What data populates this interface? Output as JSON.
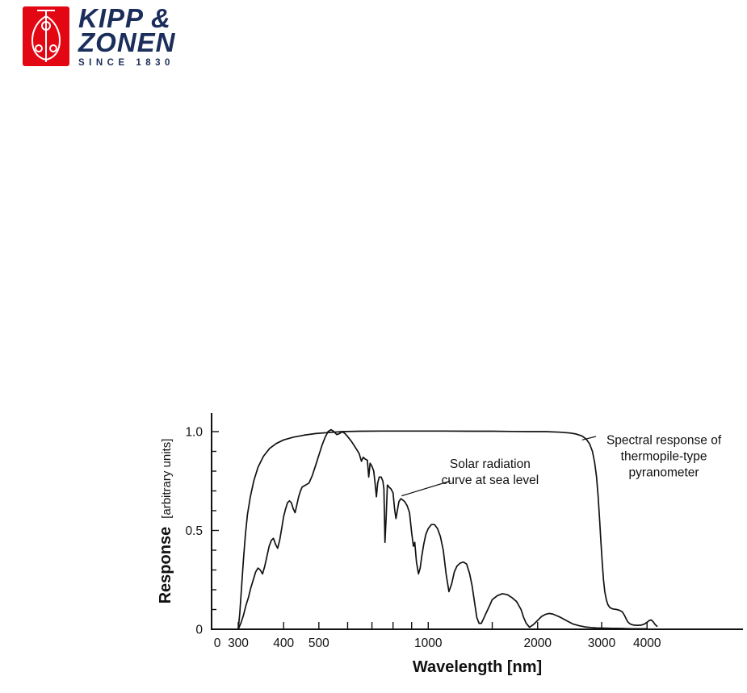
{
  "logo": {
    "brand_line1": "KIPP &",
    "brand_line2": "ZONEN",
    "tagline": "SINCE 1830",
    "colors": {
      "red": "#e30613",
      "navy": "#1b2d5b"
    }
  },
  "chart_data": {
    "type": "line",
    "x_axis": {
      "label": "Wavelength [nm]",
      "scale": "log",
      "ticks_labeled": [
        {
          "value": 0,
          "label": "0"
        },
        {
          "value": 300,
          "label": "300"
        },
        {
          "value": 400,
          "label": "400"
        },
        {
          "value": 500,
          "label": "500"
        },
        {
          "value": 1000,
          "label": "1000"
        },
        {
          "value": 2000,
          "label": "2000"
        },
        {
          "value": 3000,
          "label": "3000"
        },
        {
          "value": 4000,
          "label": "4000"
        }
      ],
      "ticks_minor": [
        600,
        700,
        800,
        900,
        1500
      ]
    },
    "y_axis": {
      "label": "Response",
      "units_label": "[arbitrary units]",
      "scale": "linear",
      "range": [
        0,
        1.08
      ],
      "ticks_labeled": [
        {
          "value": 0,
          "label": "0"
        },
        {
          "value": 0.5,
          "label": "0.5"
        },
        {
          "value": 1.0,
          "label": "1.0"
        }
      ],
      "ticks_minor": [
        0.1,
        0.2,
        0.3,
        0.4,
        0.6,
        0.7,
        0.8,
        0.9
      ]
    },
    "series": [
      {
        "name": "solar-radiation-curve",
        "label": "Solar radiation curve at sea level",
        "points": [
          [
            300,
            0
          ],
          [
            305,
            0.03
          ],
          [
            310,
            0.07
          ],
          [
            315,
            0.12
          ],
          [
            320,
            0.16
          ],
          [
            325,
            0.21
          ],
          [
            330,
            0.25
          ],
          [
            335,
            0.29
          ],
          [
            340,
            0.31
          ],
          [
            345,
            0.3
          ],
          [
            350,
            0.28
          ],
          [
            355,
            0.32
          ],
          [
            360,
            0.37
          ],
          [
            365,
            0.42
          ],
          [
            370,
            0.45
          ],
          [
            375,
            0.46
          ],
          [
            380,
            0.43
          ],
          [
            385,
            0.41
          ],
          [
            390,
            0.45
          ],
          [
            395,
            0.51
          ],
          [
            400,
            0.57
          ],
          [
            405,
            0.61
          ],
          [
            410,
            0.64
          ],
          [
            415,
            0.65
          ],
          [
            420,
            0.64
          ],
          [
            425,
            0.61
          ],
          [
            430,
            0.59
          ],
          [
            435,
            0.63
          ],
          [
            440,
            0.67
          ],
          [
            445,
            0.7
          ],
          [
            450,
            0.72
          ],
          [
            460,
            0.73
          ],
          [
            470,
            0.74
          ],
          [
            480,
            0.78
          ],
          [
            490,
            0.83
          ],
          [
            500,
            0.88
          ],
          [
            510,
            0.93
          ],
          [
            520,
            0.97
          ],
          [
            530,
            1.0
          ],
          [
            540,
            1.01
          ],
          [
            550,
            1.0
          ],
          [
            560,
            0.985
          ],
          [
            570,
            0.99
          ],
          [
            580,
            1.0
          ],
          [
            590,
            0.99
          ],
          [
            600,
            0.975
          ],
          [
            615,
            0.95
          ],
          [
            630,
            0.92
          ],
          [
            645,
            0.89
          ],
          [
            655,
            0.85
          ],
          [
            662,
            0.87
          ],
          [
            672,
            0.86
          ],
          [
            680,
            0.855
          ],
          [
            686,
            0.77
          ],
          [
            692,
            0.84
          ],
          [
            700,
            0.825
          ],
          [
            708,
            0.8
          ],
          [
            715,
            0.73
          ],
          [
            720,
            0.67
          ],
          [
            726,
            0.74
          ],
          [
            733,
            0.77
          ],
          [
            742,
            0.77
          ],
          [
            750,
            0.75
          ],
          [
            755,
            0.71
          ],
          [
            760,
            0.44
          ],
          [
            766,
            0.57
          ],
          [
            772,
            0.73
          ],
          [
            780,
            0.72
          ],
          [
            790,
            0.71
          ],
          [
            800,
            0.69
          ],
          [
            808,
            0.61
          ],
          [
            815,
            0.56
          ],
          [
            822,
            0.6
          ],
          [
            830,
            0.645
          ],
          [
            840,
            0.66
          ],
          [
            850,
            0.655
          ],
          [
            862,
            0.645
          ],
          [
            875,
            0.625
          ],
          [
            888,
            0.59
          ],
          [
            900,
            0.49
          ],
          [
            910,
            0.42
          ],
          [
            918,
            0.44
          ],
          [
            928,
            0.34
          ],
          [
            940,
            0.28
          ],
          [
            950,
            0.31
          ],
          [
            960,
            0.37
          ],
          [
            972,
            0.43
          ],
          [
            985,
            0.48
          ],
          [
            1000,
            0.51
          ],
          [
            1020,
            0.53
          ],
          [
            1040,
            0.53
          ],
          [
            1060,
            0.51
          ],
          [
            1080,
            0.47
          ],
          [
            1100,
            0.4
          ],
          [
            1120,
            0.28
          ],
          [
            1140,
            0.19
          ],
          [
            1160,
            0.23
          ],
          [
            1180,
            0.29
          ],
          [
            1200,
            0.32
          ],
          [
            1225,
            0.335
          ],
          [
            1250,
            0.34
          ],
          [
            1275,
            0.33
          ],
          [
            1300,
            0.28
          ],
          [
            1320,
            0.22
          ],
          [
            1340,
            0.14
          ],
          [
            1360,
            0.06
          ],
          [
            1380,
            0.03
          ],
          [
            1400,
            0.03
          ],
          [
            1425,
            0.06
          ],
          [
            1450,
            0.09
          ],
          [
            1475,
            0.12
          ],
          [
            1500,
            0.15
          ],
          [
            1550,
            0.17
          ],
          [
            1600,
            0.18
          ],
          [
            1650,
            0.175
          ],
          [
            1700,
            0.16
          ],
          [
            1750,
            0.14
          ],
          [
            1800,
            0.1
          ],
          [
            1830,
            0.06
          ],
          [
            1860,
            0.03
          ],
          [
            1900,
            0.01
          ],
          [
            1950,
            0.025
          ],
          [
            2000,
            0.045
          ],
          [
            2050,
            0.065
          ],
          [
            2100,
            0.075
          ],
          [
            2150,
            0.08
          ],
          [
            2200,
            0.077
          ],
          [
            2250,
            0.07
          ],
          [
            2300,
            0.062
          ],
          [
            2350,
            0.053
          ],
          [
            2400,
            0.044
          ],
          [
            2450,
            0.035
          ],
          [
            2500,
            0.027
          ],
          [
            2600,
            0.018
          ],
          [
            2700,
            0.012
          ],
          [
            2800,
            0.009
          ],
          [
            2900,
            0.007
          ],
          [
            3000,
            0.006
          ],
          [
            3200,
            0.005
          ],
          [
            3400,
            0.004
          ],
          [
            3600,
            0.003
          ],
          [
            3800,
            0.003
          ],
          [
            4000,
            0.003
          ]
        ]
      },
      {
        "name": "pyranometer-spectral-response",
        "label": "Spectral response of thermopile-type pyranometer",
        "points": [
          [
            300,
            0
          ],
          [
            303,
            0.08
          ],
          [
            306,
            0.2
          ],
          [
            310,
            0.35
          ],
          [
            314,
            0.48
          ],
          [
            318,
            0.58
          ],
          [
            324,
            0.67
          ],
          [
            331,
            0.75
          ],
          [
            340,
            0.82
          ],
          [
            352,
            0.875
          ],
          [
            366,
            0.915
          ],
          [
            382,
            0.94
          ],
          [
            400,
            0.958
          ],
          [
            425,
            0.972
          ],
          [
            455,
            0.982
          ],
          [
            490,
            0.99
          ],
          [
            530,
            0.995
          ],
          [
            580,
            1.0
          ],
          [
            650,
            1.002
          ],
          [
            750,
            1.003
          ],
          [
            900,
            1.003
          ],
          [
            1100,
            1.003
          ],
          [
            1300,
            1.002
          ],
          [
            1500,
            1.002
          ],
          [
            1700,
            1.001
          ],
          [
            1900,
            1.0
          ],
          [
            2100,
            1.0
          ],
          [
            2300,
            0.997
          ],
          [
            2450,
            0.993
          ],
          [
            2550,
            0.988
          ],
          [
            2650,
            0.978
          ],
          [
            2720,
            0.962
          ],
          [
            2780,
            0.938
          ],
          [
            2830,
            0.9
          ],
          [
            2870,
            0.845
          ],
          [
            2905,
            0.77
          ],
          [
            2935,
            0.67
          ],
          [
            2960,
            0.56
          ],
          [
            2985,
            0.45
          ],
          [
            3010,
            0.34
          ],
          [
            3035,
            0.25
          ],
          [
            3060,
            0.19
          ],
          [
            3090,
            0.15
          ],
          [
            3120,
            0.125
          ],
          [
            3160,
            0.11
          ],
          [
            3220,
            0.103
          ],
          [
            3300,
            0.1
          ],
          [
            3360,
            0.096
          ],
          [
            3420,
            0.088
          ],
          [
            3470,
            0.07
          ],
          [
            3510,
            0.05
          ],
          [
            3550,
            0.035
          ],
          [
            3600,
            0.026
          ],
          [
            3680,
            0.021
          ],
          [
            3760,
            0.02
          ],
          [
            3850,
            0.021
          ],
          [
            3930,
            0.026
          ],
          [
            4000,
            0.035
          ],
          [
            4060,
            0.045
          ],
          [
            4110,
            0.047
          ],
          [
            4160,
            0.038
          ],
          [
            4210,
            0.024
          ],
          [
            4260,
            0.015
          ]
        ]
      }
    ],
    "annotations": [
      {
        "name": "solar-curve-label",
        "lines": [
          "Solar radiation",
          "curve at sea level"
        ],
        "anchor": {
          "lam": 1480,
          "v": 0.795
        },
        "leader": {
          "from": {
            "lam": 1150,
            "v": 0.75
          },
          "to": {
            "lam": 845,
            "v": 0.675
          }
        }
      },
      {
        "name": "pyranometer-curve-label",
        "lines": [
          "Spectral response of",
          "thermopile-type",
          "pyranometer"
        ],
        "anchor": {
          "lam": 4450,
          "v": 0.876
        },
        "leader": {
          "from": {
            "lam": 2893,
            "v": 0.9755
          },
          "to": {
            "lam": 2650,
            "v": 0.958
          }
        }
      }
    ]
  }
}
